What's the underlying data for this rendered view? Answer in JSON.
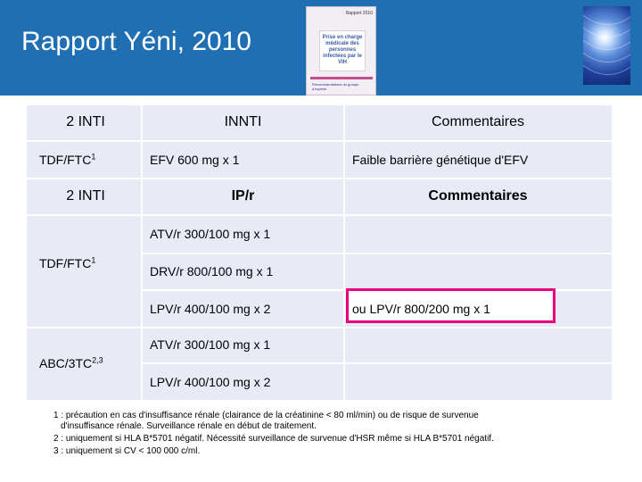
{
  "header": {
    "title": "Rapport Yéni, 2010",
    "cover": {
      "top_text": "Rapport 2010",
      "center_text": "Prise en charge médicale des personnes infectées par le VIH",
      "bottom_text": "Recommandations du groupe d'experts"
    }
  },
  "table1": {
    "headers": [
      "2 INTI",
      "INNTI",
      "Commentaires"
    ],
    "row": {
      "inti": "TDF/FTC",
      "inti_sup": "1",
      "innti": "EFV 600 mg x 1",
      "comment": "Faible barrière génétique d'EFV"
    }
  },
  "table2": {
    "headers": [
      "2 INTI",
      "IP/r",
      "Commentaires"
    ],
    "group1": {
      "inti": "TDF/FTC",
      "inti_sup": "1",
      "rows": [
        {
          "ip": "ATV/r 300/100 mg x 1",
          "comment": ""
        },
        {
          "ip": "DRV/r 800/100 mg x 1",
          "comment": ""
        },
        {
          "ip": "LPV/r 400/100 mg x 2",
          "comment": "ou LPV/r 800/200 mg x 1"
        }
      ]
    },
    "group2": {
      "inti": "ABC/3TC",
      "inti_sup": "2,3",
      "rows": [
        {
          "ip": "ATV/r 300/100 mg x 1"
        },
        {
          "ip": "LPV/r 400/100 mg x 2"
        }
      ]
    }
  },
  "colors": {
    "title_bar": "#1f6fb2",
    "table_bg": "#e8ebf6",
    "highlight_border": "#e8007e"
  },
  "footnotes": {
    "n1_line1": "1 : précaution en cas d'insuffisance rénale (clairance de la créatinine < 80 ml/min) ou de risque de survenue",
    "n1_line2": "d'insuffisance rénale. Surveillance rénale en début de traitement.",
    "n2": "2 : uniquement si HLA B*5701 négatif. Nécessité surveillance de survenue d'HSR même si HLA B*5701 négatif.",
    "n3": "3 : uniquement si CV < 100 000 c/ml."
  }
}
